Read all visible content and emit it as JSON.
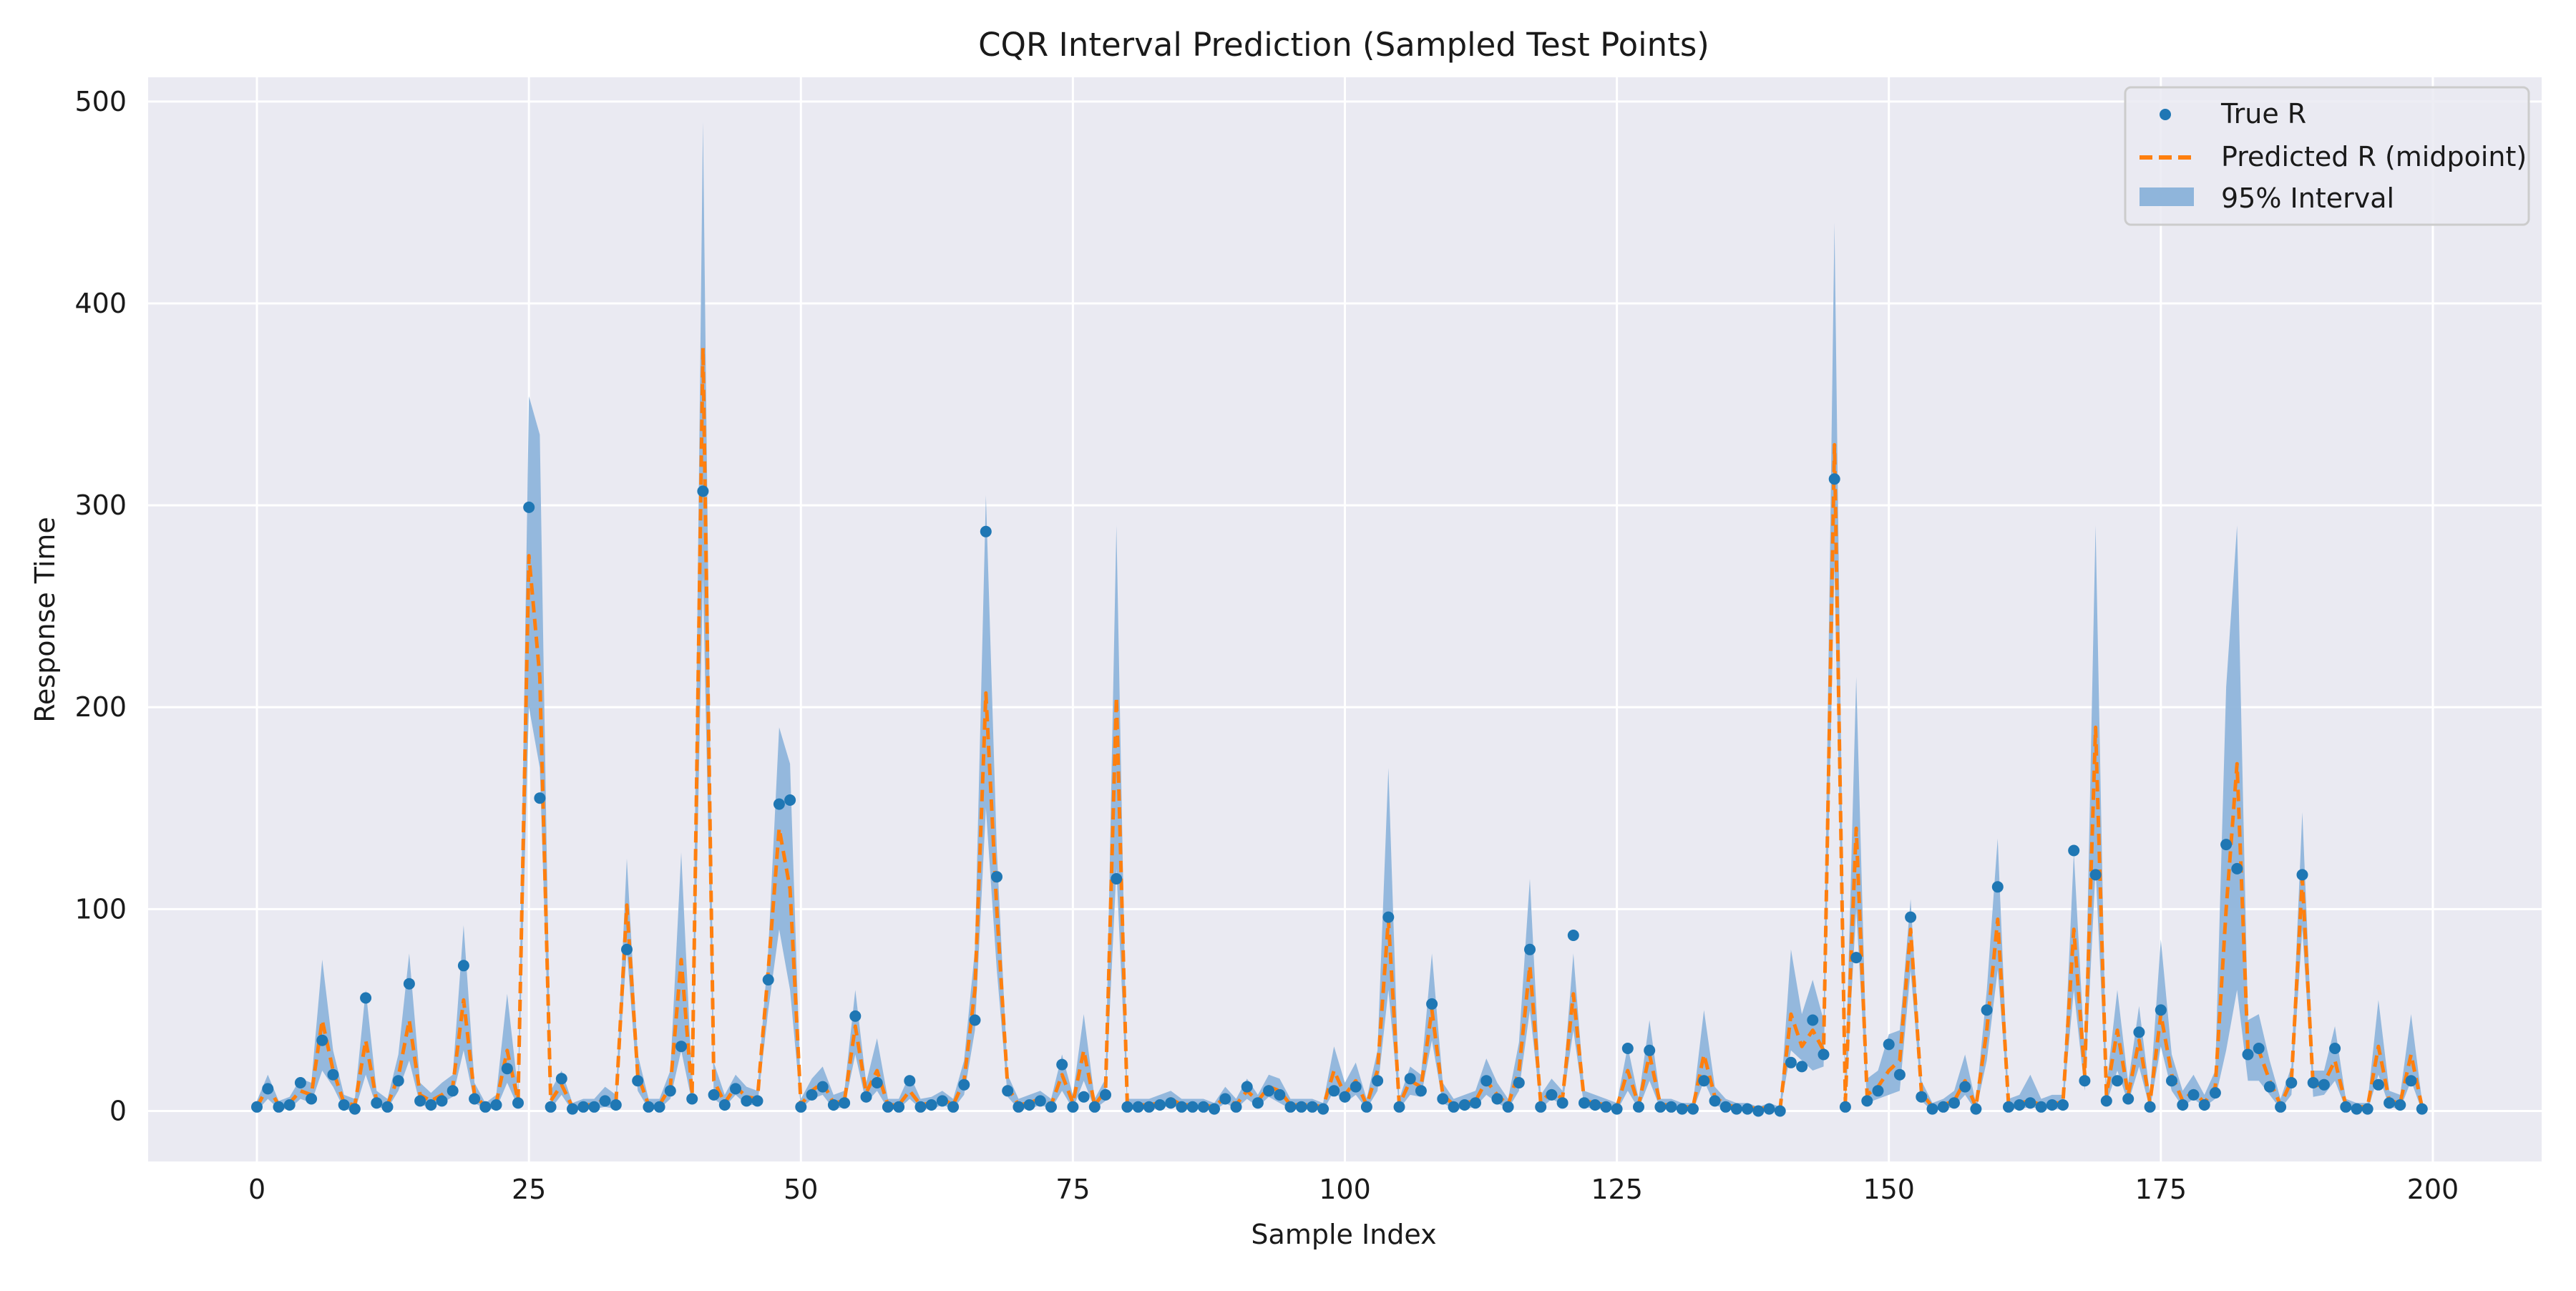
{
  "chart_data": {
    "type": "line",
    "title": "CQR Interval Prediction (Sampled Test Points)",
    "xlabel": "Sample Index",
    "ylabel": "Response Time",
    "xlim": [
      -10,
      210
    ],
    "ylim": [
      -25,
      512
    ],
    "xticks": [
      0,
      25,
      50,
      75,
      100,
      125,
      150,
      175,
      200
    ],
    "yticks": [
      0,
      100,
      200,
      300,
      400,
      500
    ],
    "grid": true,
    "legend_position": "top-right",
    "background": "#eaeaf2",
    "colors": {
      "true": "#1f77b4",
      "pred": "#ff7f0e",
      "interval": "#8fb5db"
    },
    "legend": [
      {
        "key": "true",
        "label": "True R",
        "style": "marker"
      },
      {
        "key": "pred",
        "label": "Predicted R (midpoint)",
        "style": "dashed-line"
      },
      {
        "key": "interval",
        "label": "95% Interval",
        "style": "patch"
      }
    ],
    "x": [
      0,
      1,
      2,
      3,
      4,
      5,
      6,
      7,
      8,
      9,
      10,
      11,
      12,
      13,
      14,
      15,
      16,
      17,
      18,
      19,
      20,
      21,
      22,
      23,
      24,
      25,
      26,
      27,
      28,
      29,
      30,
      31,
      32,
      33,
      34,
      35,
      36,
      37,
      38,
      39,
      40,
      41,
      42,
      43,
      44,
      45,
      46,
      47,
      48,
      49,
      50,
      51,
      52,
      53,
      54,
      55,
      56,
      57,
      58,
      59,
      60,
      61,
      62,
      63,
      64,
      65,
      66,
      67,
      68,
      69,
      70,
      71,
      72,
      73,
      74,
      75,
      76,
      77,
      78,
      79,
      80,
      81,
      82,
      83,
      84,
      85,
      86,
      87,
      88,
      89,
      90,
      91,
      92,
      93,
      94,
      95,
      96,
      97,
      98,
      99,
      100,
      101,
      102,
      103,
      104,
      105,
      106,
      107,
      108,
      109,
      110,
      111,
      112,
      113,
      114,
      115,
      116,
      117,
      118,
      119,
      120,
      121,
      122,
      123,
      124,
      125,
      126,
      127,
      128,
      129,
      130,
      131,
      132,
      133,
      134,
      135,
      136,
      137,
      138,
      139,
      140,
      141,
      142,
      143,
      144,
      145,
      146,
      147,
      148,
      149,
      150,
      151,
      152,
      153,
      154,
      155,
      156,
      157,
      158,
      159,
      160,
      161,
      162,
      163,
      164,
      165,
      166,
      167,
      168,
      169,
      170,
      171,
      172,
      173,
      174,
      175,
      176,
      177,
      178,
      179,
      180,
      181,
      182,
      183,
      184,
      185,
      186,
      187,
      188,
      189,
      190,
      191,
      192,
      193,
      194,
      195,
      196,
      197,
      198,
      199
    ],
    "series": [
      {
        "name": "True R",
        "values": [
          2,
          11,
          2,
          3,
          14,
          6,
          35,
          18,
          3,
          1,
          56,
          4,
          2,
          15,
          63,
          5,
          3,
          5,
          10,
          72,
          6,
          2,
          3,
          21,
          4,
          299,
          155,
          2,
          16,
          1,
          2,
          2,
          5,
          3,
          80,
          15,
          2,
          2,
          10,
          32,
          6,
          307,
          8,
          3,
          11,
          5,
          5,
          65,
          152,
          154,
          2,
          8,
          12,
          3,
          4,
          47,
          7,
          14,
          2,
          2,
          15,
          2,
          3,
          5,
          2,
          13,
          45,
          287,
          116,
          10,
          2,
          3,
          5,
          2,
          23,
          2,
          7,
          2,
          8,
          115,
          2,
          2,
          2,
          3,
          4,
          2,
          2,
          2,
          1,
          6,
          2,
          12,
          4,
          10,
          8,
          2,
          2,
          2,
          1,
          10,
          7,
          12,
          2,
          15,
          96,
          2,
          16,
          10,
          53,
          6,
          2,
          3,
          4,
          15,
          6,
          2,
          14,
          80,
          2,
          8,
          4,
          87,
          4,
          3,
          2,
          1,
          31,
          2,
          30,
          2,
          2,
          1,
          1,
          15,
          5,
          2,
          1,
          1,
          0,
          1,
          0,
          24,
          22,
          45,
          28,
          313,
          2,
          76,
          5,
          10,
          33,
          18,
          96,
          7,
          1,
          2,
          4,
          12,
          1,
          50,
          111,
          2,
          3,
          4,
          2,
          3,
          3,
          129,
          15,
          117,
          5,
          15,
          6,
          39,
          2,
          50,
          15,
          3,
          8,
          3,
          9,
          132,
          120,
          28,
          31,
          12,
          2,
          14,
          117,
          14,
          13,
          31,
          2,
          1,
          1,
          13,
          4,
          3,
          15,
          1
        ]
      },
      {
        "name": "Predicted R (midpoint)",
        "values": [
          2,
          12,
          3,
          4,
          10,
          8,
          45,
          20,
          4,
          3,
          35,
          5,
          3,
          17,
          45,
          8,
          5,
          8,
          12,
          55,
          8,
          2,
          4,
          30,
          5,
          275,
          215,
          5,
          13,
          2,
          3,
          3,
          6,
          4,
          102,
          18,
          3,
          3,
          12,
          75,
          8,
          378,
          15,
          4,
          12,
          7,
          6,
          70,
          140,
          110,
          3,
          10,
          14,
          4,
          5,
          42,
          9,
          20,
          3,
          3,
          10,
          3,
          4,
          6,
          3,
          15,
          60,
          207,
          100,
          12,
          3,
          4,
          6,
          3,
          18,
          4,
          30,
          3,
          10,
          205,
          3,
          3,
          3,
          4,
          6,
          3,
          3,
          3,
          2,
          7,
          3,
          10,
          5,
          12,
          10,
          3,
          3,
          3,
          2,
          20,
          8,
          15,
          3,
          20,
          95,
          3,
          15,
          12,
          50,
          8,
          3,
          4,
          5,
          15,
          8,
          3,
          20,
          72,
          4,
          10,
          6,
          58,
          5,
          4,
          3,
          2,
          20,
          3,
          28,
          3,
          3,
          2,
          2,
          28,
          7,
          3,
          2,
          2,
          1,
          2,
          1,
          48,
          32,
          40,
          30,
          330,
          5,
          140,
          8,
          12,
          20,
          25,
          90,
          9,
          2,
          3,
          5,
          15,
          2,
          40,
          95,
          3,
          4,
          5,
          3,
          4,
          4,
          90,
          18,
          190,
          8,
          40,
          8,
          35,
          4,
          48,
          18,
          5,
          10,
          4,
          12,
          100,
          172,
          30,
          30,
          15,
          3,
          15,
          115,
          12,
          14,
          25,
          3,
          2,
          2,
          32,
          5,
          4,
          28,
          2
        ]
      }
    ],
    "interval": {
      "name": "95% Interval",
      "lower": [
        0,
        6,
        1,
        1,
        6,
        4,
        20,
        12,
        1,
        0,
        18,
        2,
        1,
        10,
        25,
        3,
        2,
        4,
        7,
        30,
        4,
        1,
        1,
        14,
        2,
        200,
        170,
        1,
        8,
        0,
        1,
        1,
        2,
        1,
        80,
        10,
        1,
        1,
        6,
        30,
        4,
        265,
        6,
        2,
        8,
        3,
        3,
        50,
        90,
        60,
        1,
        6,
        8,
        1,
        2,
        28,
        4,
        10,
        1,
        1,
        6,
        1,
        1,
        3,
        1,
        8,
        40,
        150,
        70,
        7,
        1,
        1,
        3,
        1,
        10,
        1,
        15,
        1,
        5,
        120,
        1,
        1,
        1,
        1,
        3,
        1,
        1,
        1,
        0,
        4,
        1,
        6,
        2,
        7,
        4,
        1,
        1,
        1,
        0,
        10,
        4,
        8,
        1,
        10,
        60,
        1,
        8,
        7,
        35,
        4,
        1,
        1,
        2,
        8,
        4,
        1,
        10,
        50,
        1,
        6,
        3,
        40,
        2,
        1,
        1,
        0,
        10,
        1,
        15,
        1,
        1,
        0,
        0,
        15,
        3,
        1,
        0,
        0,
        0,
        0,
        0,
        30,
        25,
        20,
        22,
        270,
        2,
        100,
        4,
        6,
        8,
        10,
        70,
        5,
        0,
        1,
        2,
        8,
        0,
        25,
        70,
        1,
        1,
        2,
        1,
        1,
        1,
        60,
        10,
        120,
        4,
        20,
        4,
        22,
        1,
        32,
        10,
        2,
        6,
        2,
        6,
        30,
        60,
        15,
        15,
        8,
        1,
        8,
        90,
        7,
        8,
        15,
        1,
        0,
        0,
        18,
        2,
        1,
        15,
        0
      ],
      "upper": [
        5,
        18,
        5,
        7,
        16,
        14,
        75,
        30,
        8,
        6,
        60,
        10,
        6,
        28,
        78,
        14,
        9,
        14,
        18,
        92,
        14,
        4,
        8,
        58,
        10,
        354,
        335,
        10,
        20,
        4,
        6,
        6,
        12,
        8,
        125,
        28,
        6,
        6,
        20,
        128,
        14,
        490,
        24,
        8,
        18,
        12,
        10,
        80,
        190,
        172,
        6,
        16,
        22,
        8,
        10,
        60,
        14,
        36,
        6,
        6,
        18,
        6,
        7,
        10,
        6,
        25,
        80,
        305,
        130,
        18,
        6,
        8,
        10,
        6,
        28,
        8,
        48,
        6,
        16,
        290,
        6,
        6,
        6,
        8,
        10,
        6,
        6,
        6,
        4,
        12,
        6,
        16,
        8,
        18,
        16,
        6,
        6,
        6,
        4,
        32,
        14,
        24,
        6,
        30,
        170,
        6,
        22,
        18,
        78,
        14,
        6,
        8,
        10,
        26,
        14,
        6,
        34,
        115,
        8,
        16,
        10,
        78,
        10,
        8,
        6,
        4,
        32,
        6,
        45,
        6,
        6,
        4,
        4,
        50,
        12,
        6,
        4,
        4,
        2,
        4,
        2,
        80,
        48,
        65,
        45,
        440,
        12,
        215,
        16,
        20,
        38,
        40,
        105,
        15,
        4,
        6,
        10,
        28,
        4,
        60,
        135,
        6,
        8,
        18,
        6,
        8,
        8,
        128,
        28,
        290,
        12,
        60,
        14,
        52,
        8,
        85,
        28,
        10,
        18,
        8,
        20,
        210,
        290,
        45,
        48,
        25,
        6,
        22,
        148,
        20,
        20,
        42,
        6,
        4,
        4,
        55,
        10,
        8,
        48,
        5
      ]
    }
  }
}
